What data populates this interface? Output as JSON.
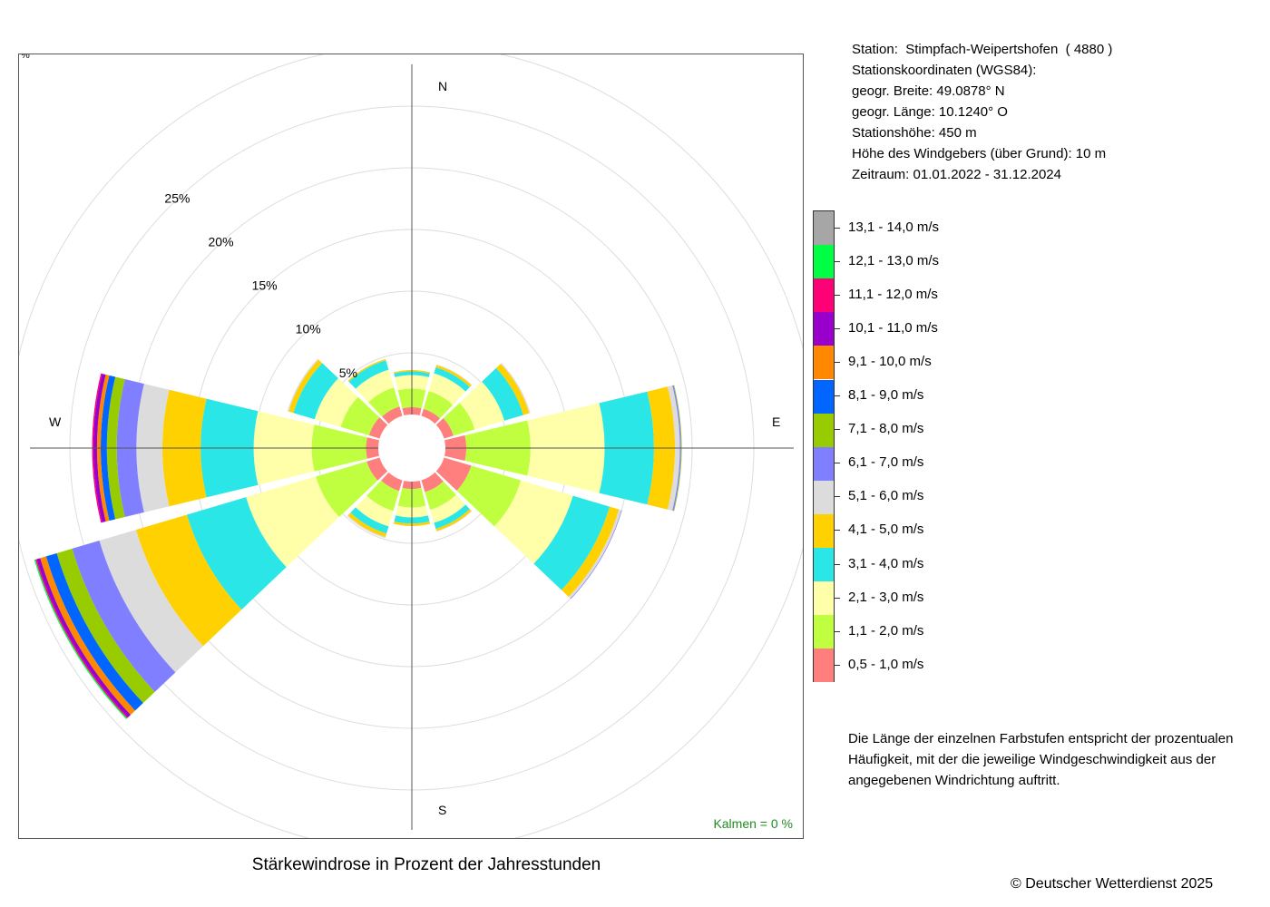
{
  "info": {
    "station": "Station:  Stimpfach-Weipertshofen  ( 4880 )",
    "coords_title": "Stationskoordinaten (WGS84):",
    "lat": "geogr. Breite: 49.0878° N",
    "lon": "geogr. Länge: 10.1240° O",
    "elevation": "Stationshöhe: 450 m",
    "sensor_height": "Höhe des Windgebers (über Grund): 10 m",
    "period": "Zeitraum: 01.01.2022 - 31.12.2024"
  },
  "explanation": "Die Länge der einzelnen Farbstufen entspricht der prozentualen Häufigkeit, mit der die jeweilige Windgeschwindigkeit aus der angegebenen Windrichtung auftritt.",
  "calm_label": "Kalmen  =  0 %",
  "plot_title": "Stärkewindrose in Prozent der Jahresstunden",
  "copyright": "© Deutscher Wetterdienst  2025",
  "percent_mark": "%",
  "chart_data": {
    "type": "wind-rose",
    "title": "Stärkewindrose in Prozent der Jahresstunden",
    "unit": "%",
    "calm_percent": 0,
    "ring_ticks": [
      5,
      10,
      15,
      20,
      25
    ],
    "ring_labels": [
      "5%",
      "10%",
      "15%",
      "20%",
      "25%"
    ],
    "direction_labels": [
      "N",
      "E",
      "S",
      "W"
    ],
    "sector_centers_deg": [
      0,
      30,
      60,
      90,
      120,
      150,
      180,
      210,
      240,
      270,
      300,
      330
    ],
    "speed_classes": [
      {
        "label": "0,5 - 1,0 m/s",
        "color": "#FF7F7F"
      },
      {
        "label": "1,1 - 2,0 m/s",
        "color": "#BFFF3F"
      },
      {
        "label": "2,1 - 3,0 m/s",
        "color": "#FFFFAA"
      },
      {
        "label": "3,1 - 4,0 m/s",
        "color": "#2BE6E6"
      },
      {
        "label": "4,1 - 5,0 m/s",
        "color": "#FFD100"
      },
      {
        "label": "5,1 - 6,0 m/s",
        "color": "#DCDCDC"
      },
      {
        "label": "6,1 - 7,0 m/s",
        "color": "#7F7FFF"
      },
      {
        "label": "7,1 - 8,0 m/s",
        "color": "#99CC00"
      },
      {
        "label": "8,1 - 9,0 m/s",
        "color": "#0066FF"
      },
      {
        "label": "9,1 - 10,0 m/s",
        "color": "#FF8800"
      },
      {
        "label": "10,1 - 11,0 m/s",
        "color": "#9900CC"
      },
      {
        "label": "11,1 - 12,0 m/s",
        "color": "#FF0077"
      },
      {
        "label": "12,1 - 13,0 m/s",
        "color": "#00FF44"
      },
      {
        "label": "13,1 - 14,0 m/s",
        "color": "#A6A6A6"
      }
    ],
    "series": [
      {
        "direction_deg": 0,
        "values": [
          0.6,
          1.5,
          1.1,
          0.3,
          0.1
        ]
      },
      {
        "direction_deg": 30,
        "values": [
          0.6,
          1.5,
          1.5,
          0.5,
          0.2,
          0.05
        ]
      },
      {
        "direction_deg": 60,
        "values": [
          0.8,
          1.8,
          2.5,
          1.6,
          0.5,
          0.1
        ]
      },
      {
        "direction_deg": 90,
        "values": [
          1.7,
          5.2,
          6.0,
          4.0,
          1.7,
          0.4,
          0.1,
          0.05
        ]
      },
      {
        "direction_deg": 120,
        "values": [
          2.3,
          4.2,
          4.4,
          3.1,
          0.8,
          0.2,
          0.05
        ]
      },
      {
        "direction_deg": 150,
        "values": [
          1.0,
          1.5,
          1.1,
          0.5,
          0.2,
          0.05
        ]
      },
      {
        "direction_deg": 180,
        "values": [
          0.6,
          1.5,
          0.8,
          0.5,
          0.2
        ]
      },
      {
        "direction_deg": 210,
        "values": [
          0.9,
          1.7,
          1.3,
          0.6,
          0.3,
          0.1
        ]
      },
      {
        "direction_deg": 240,
        "values": [
          1.1,
          4.3,
          5.9,
          5.0,
          4.3,
          3.1,
          2.3,
          1.3,
          0.9,
          0.5,
          0.3,
          0.1,
          0.1
        ]
      },
      {
        "direction_deg": 270,
        "values": [
          1.0,
          4.4,
          4.7,
          4.3,
          3.1,
          2.1,
          1.6,
          0.8,
          0.5,
          0.3,
          0.3,
          0.1
        ]
      },
      {
        "direction_deg": 300,
        "values": [
          0.9,
          2.4,
          2.2,
          1.8,
          0.4,
          0.1
        ]
      },
      {
        "direction_deg": 330,
        "values": [
          0.8,
          1.6,
          1.5,
          0.8,
          0.1
        ]
      }
    ]
  }
}
